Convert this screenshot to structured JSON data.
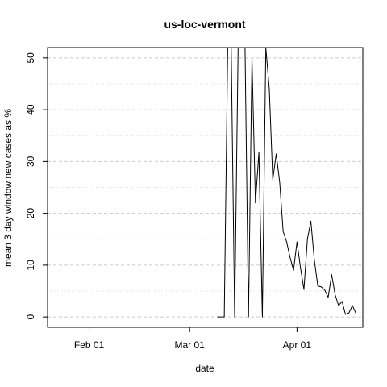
{
  "chart_data": {
    "type": "line",
    "title": "us-loc-vermont",
    "xlabel": "date",
    "ylabel": "mean  3  day window new cases as %",
    "x_range": [
      "2020-01-20",
      "2020-04-20"
    ],
    "ylim": [
      -2,
      52
    ],
    "x_ticks": [
      {
        "date": "2020-02-01",
        "label": "Feb 01"
      },
      {
        "date": "2020-03-01",
        "label": "Mar 01"
      },
      {
        "date": "2020-04-01",
        "label": "Apr 01"
      }
    ],
    "y_ticks": [
      0,
      10,
      20,
      30,
      40,
      50
    ],
    "grid": {
      "major_y": [
        0,
        10,
        20,
        30,
        40,
        50
      ],
      "minor_y": [
        5,
        15,
        25,
        35,
        45
      ],
      "style": "dashed"
    },
    "series": [
      {
        "color": "#000000",
        "points": [
          [
            "2020-03-09",
            0
          ],
          [
            "2020-03-10",
            0
          ],
          [
            "2020-03-11",
            0
          ],
          [
            "2020-03-12",
            52
          ],
          [
            "2020-03-13",
            52
          ],
          [
            "2020-03-14",
            0
          ],
          [
            "2020-03-15",
            52
          ],
          [
            "2020-03-16",
            52
          ],
          [
            "2020-03-17",
            52
          ],
          [
            "2020-03-18",
            0
          ],
          [
            "2020-03-19",
            50
          ],
          [
            "2020-03-20",
            22
          ],
          [
            "2020-03-21",
            31.8
          ],
          [
            "2020-03-22",
            0
          ],
          [
            "2020-03-23",
            52
          ],
          [
            "2020-03-24",
            44
          ],
          [
            "2020-03-25",
            26.5
          ],
          [
            "2020-03-26",
            31.5
          ],
          [
            "2020-03-27",
            26
          ],
          [
            "2020-03-28",
            16.5
          ],
          [
            "2020-03-29",
            14.5
          ],
          [
            "2020-03-30",
            11.5
          ],
          [
            "2020-03-31",
            9
          ],
          [
            "2020-04-01",
            14.5
          ],
          [
            "2020-04-02",
            9.5
          ],
          [
            "2020-04-03",
            5.3
          ],
          [
            "2020-04-04",
            15
          ],
          [
            "2020-04-05",
            18.5
          ],
          [
            "2020-04-06",
            11
          ],
          [
            "2020-04-07",
            6
          ],
          [
            "2020-04-08",
            5.8
          ],
          [
            "2020-04-09",
            5.2
          ],
          [
            "2020-04-10",
            3.8
          ],
          [
            "2020-04-11",
            8.2
          ],
          [
            "2020-04-12",
            4.3
          ],
          [
            "2020-04-13",
            2.2
          ],
          [
            "2020-04-14",
            3
          ],
          [
            "2020-04-15",
            0.5
          ],
          [
            "2020-04-16",
            0.8
          ],
          [
            "2020-04-17",
            2.2
          ],
          [
            "2020-04-18",
            0.7
          ]
        ]
      }
    ]
  }
}
